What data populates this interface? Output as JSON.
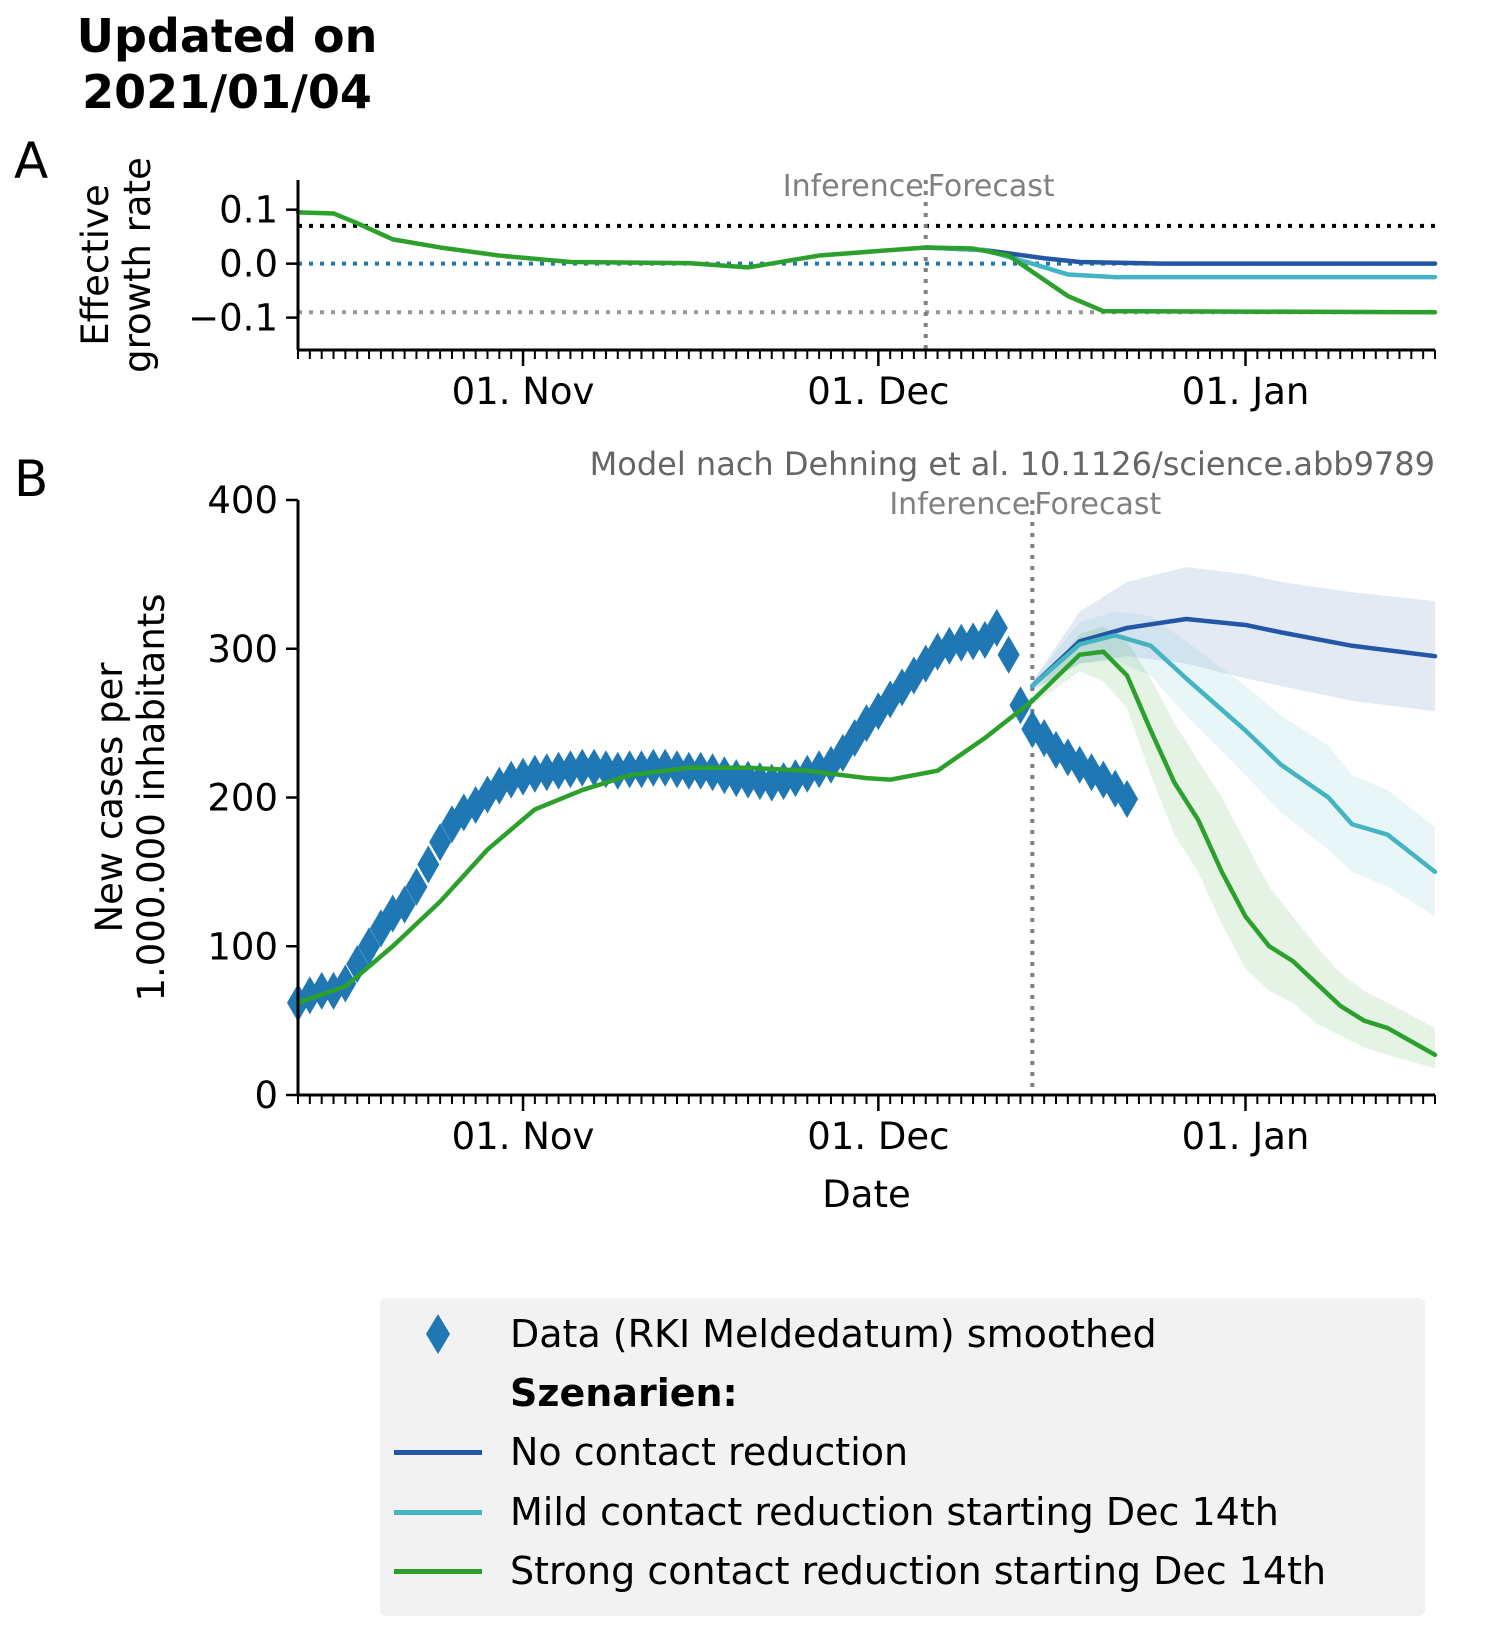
{
  "header": {
    "title_line1": "Updated on",
    "title_line2": "2021/01/04"
  },
  "panels": {
    "a_letter": "A",
    "b_letter": "B"
  },
  "colors": {
    "data": "#1f77b4",
    "no_reduction": "#2456a6",
    "mild_reduction": "#45b4c2",
    "strong_reduction": "#2ca02c",
    "separator": "#808080",
    "axis": "#000000"
  },
  "chart_data": [
    {
      "id": "A",
      "type": "line",
      "ylabel_line1": "Effective",
      "ylabel_line2": "growth rate",
      "xlabel": "",
      "ylim": [
        -0.16,
        0.155
      ],
      "x_range": [
        "2020-10-13",
        "2021-01-17"
      ],
      "x_tick_labels": [
        "01. Nov",
        "01. Dec",
        "01. Jan"
      ],
      "x_tick_dates": [
        "2020-11-01",
        "2020-12-01",
        "2021-01-01"
      ],
      "y_ticks": [
        0.1,
        0.0,
        -0.1
      ],
      "y_tick_labels": [
        "0.1",
        "0.0",
        "−0.1"
      ],
      "separator_date": "2020-12-05",
      "separator_labels": [
        "Inference",
        "Forecast"
      ],
      "reference_lines": [
        {
          "value": 0.07,
          "color": "#000000"
        },
        {
          "value": 0.0,
          "color": "#1f77b4"
        },
        {
          "value": -0.09,
          "color": "#999999"
        }
      ],
      "series": [
        {
          "name": "No contact reduction",
          "color_key": "no_reduction",
          "x": [
            "2020-12-05",
            "2020-12-10",
            "2020-12-15",
            "2020-12-18",
            "2020-12-25",
            "2021-01-17"
          ],
          "y": [
            0.03,
            0.025,
            0.01,
            0.003,
            0.0,
            0.0
          ]
        },
        {
          "name": "Mild contact reduction starting Dec 14th",
          "color_key": "mild_reduction",
          "x": [
            "2020-12-05",
            "2020-12-10",
            "2020-12-14",
            "2020-12-17",
            "2020-12-21",
            "2021-01-17"
          ],
          "y": [
            0.03,
            0.025,
            0.0,
            -0.02,
            -0.025,
            -0.025
          ]
        },
        {
          "name": "Strong contact reduction starting Dec 14th",
          "color_key": "strong_reduction",
          "x": [
            "2020-10-13",
            "2020-10-16",
            "2020-10-18",
            "2020-10-21",
            "2020-10-25",
            "2020-10-30",
            "2020-11-05",
            "2020-11-15",
            "2020-11-20",
            "2020-11-26",
            "2020-12-05",
            "2020-12-09",
            "2020-12-12",
            "2020-12-15",
            "2020-12-17",
            "2020-12-20",
            "2021-01-17"
          ],
          "y": [
            0.095,
            0.093,
            0.075,
            0.045,
            0.03,
            0.015,
            0.003,
            0.001,
            -0.007,
            0.015,
            0.03,
            0.028,
            0.015,
            -0.03,
            -0.06,
            -0.088,
            -0.09
          ]
        }
      ]
    },
    {
      "id": "B",
      "type": "line",
      "annotation": "Model nach Dehning et al. 10.1126/science.abb9789",
      "ylabel_line1": "New cases per",
      "ylabel_line2": "1.000.000 inhabitants",
      "xlabel": "Date",
      "ylim": [
        0,
        400
      ],
      "y_ticks": [
        0,
        100,
        200,
        300,
        400
      ],
      "x_range": [
        "2020-10-13",
        "2021-01-17"
      ],
      "x_tick_labels": [
        "01. Nov",
        "01. Dec",
        "01. Jan"
      ],
      "x_tick_dates": [
        "2020-11-01",
        "2020-12-01",
        "2021-01-01"
      ],
      "separator_date": "2020-12-14",
      "separator_labels": [
        "Inference",
        "Forecast"
      ],
      "data_points": {
        "name": "Data (RKI Meldedatum) smoothed",
        "x_start": "2020-10-13",
        "y": [
          62,
          67,
          70,
          70,
          75,
          88,
          100,
          112,
          122,
          128,
          140,
          155,
          170,
          182,
          190,
          195,
          202,
          208,
          212,
          214,
          216,
          217,
          218,
          219,
          220,
          220,
          219,
          218,
          219,
          219,
          220,
          220,
          219,
          218,
          218,
          217,
          215,
          213,
          212,
          211,
          210,
          211,
          213,
          216,
          219,
          222,
          230,
          240,
          250,
          258,
          266,
          274,
          282,
          290,
          298,
          302,
          304,
          305,
          306,
          314,
          296,
          262,
          246,
          240,
          232,
          227,
          222,
          217,
          212,
          206,
          199
        ]
      },
      "series": [
        {
          "name": "No contact reduction",
          "color_key": "no_reduction",
          "x": [
            "2020-12-14",
            "2020-12-18",
            "2020-12-22",
            "2020-12-27",
            "2021-01-01",
            "2021-01-04",
            "2021-01-10",
            "2021-01-17"
          ],
          "y": [
            275,
            305,
            314,
            320,
            316,
            311,
            302,
            295
          ],
          "band_upper": [
            278,
            325,
            345,
            355,
            350,
            345,
            338,
            332
          ],
          "band_lower": [
            272,
            290,
            295,
            290,
            280,
            275,
            265,
            258
          ]
        },
        {
          "name": "Mild contact reduction starting Dec 14th",
          "color_key": "mild_reduction",
          "x": [
            "2020-12-14",
            "2020-12-18",
            "2020-12-21",
            "2020-12-24",
            "2020-12-27",
            "2021-01-01",
            "2021-01-04",
            "2021-01-08",
            "2021-01-10",
            "2021-01-13",
            "2021-01-17"
          ],
          "y": [
            275,
            303,
            309,
            302,
            280,
            245,
            222,
            200,
            182,
            175,
            150
          ],
          "band_upper": [
            278,
            318,
            325,
            322,
            305,
            275,
            255,
            235,
            215,
            205,
            180
          ],
          "band_lower": [
            272,
            290,
            292,
            282,
            255,
            215,
            190,
            165,
            150,
            140,
            120
          ]
        },
        {
          "name": "Strong contact reduction starting Dec 14th",
          "color_key": "strong_reduction",
          "x": [
            "2020-10-13",
            "2020-10-17",
            "2020-10-21",
            "2020-10-25",
            "2020-10-29",
            "2020-11-02",
            "2020-11-06",
            "2020-11-10",
            "2020-11-15",
            "2020-11-20",
            "2020-11-25",
            "2020-11-30",
            "2020-12-02",
            "2020-12-06",
            "2020-12-10",
            "2020-12-14",
            "2020-12-18",
            "2020-12-20",
            "2020-12-22",
            "2020-12-24",
            "2020-12-26",
            "2020-12-28",
            "2020-12-30",
            "2021-01-01",
            "2021-01-03",
            "2021-01-05",
            "2021-01-07",
            "2021-01-09",
            "2021-01-11",
            "2021-01-13",
            "2021-01-17"
          ],
          "y": [
            62,
            73,
            100,
            130,
            165,
            192,
            205,
            215,
            220,
            220,
            218,
            213,
            212,
            218,
            240,
            265,
            296,
            298,
            282,
            245,
            210,
            185,
            150,
            120,
            100,
            90,
            75,
            60,
            50,
            45,
            27
          ],
          "band_upper": [
            62,
            73,
            100,
            130,
            165,
            192,
            205,
            215,
            220,
            220,
            218,
            213,
            212,
            218,
            240,
            268,
            310,
            315,
            305,
            280,
            250,
            225,
            200,
            170,
            140,
            120,
            100,
            82,
            70,
            62,
            45
          ],
          "band_lower": [
            62,
            73,
            100,
            130,
            165,
            192,
            205,
            215,
            220,
            220,
            218,
            213,
            212,
            218,
            240,
            262,
            285,
            278,
            260,
            215,
            175,
            150,
            115,
            85,
            70,
            62,
            48,
            40,
            32,
            27,
            18
          ]
        }
      ]
    }
  ],
  "legend": {
    "data_label": "Data (RKI Meldedatum) smoothed",
    "section_label": "Szenarien:",
    "items": [
      {
        "label": "No contact reduction",
        "color_key": "no_reduction"
      },
      {
        "label": "Mild contact reduction starting Dec 14th",
        "color_key": "mild_reduction"
      },
      {
        "label": "Strong contact reduction starting Dec 14th",
        "color_key": "strong_reduction"
      }
    ]
  }
}
